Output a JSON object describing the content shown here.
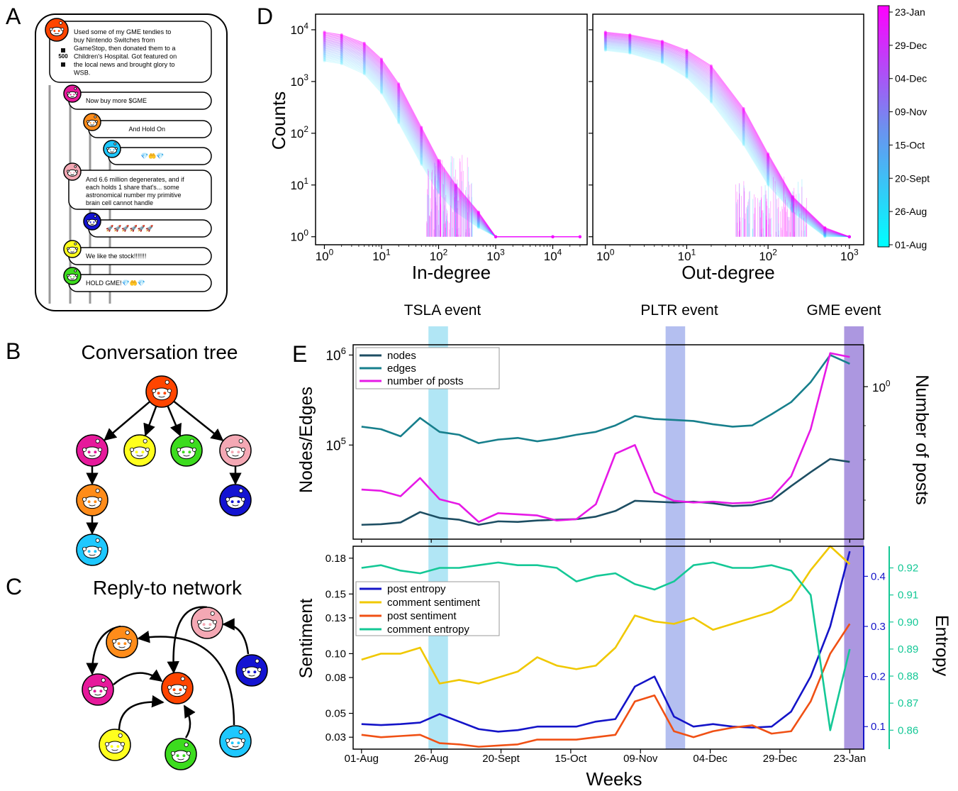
{
  "panel_letters": {
    "a": "A",
    "b": "B",
    "c": "C",
    "d": "D",
    "e": "E"
  },
  "thread": {
    "vote_count": "500",
    "top_post": [
      "Used some of my GME tendies to",
      "buy Nintendo Switches from",
      "GameStop, then donated them to a",
      "Children's Hospital. Got featured on",
      "the local news and brought glory to",
      "WSB."
    ],
    "replies": [
      {
        "lines": [
          "Now buy more $GME"
        ],
        "color": "#e6199b"
      },
      {
        "lines": [
          "And Hold On"
        ],
        "color": "#ff8c1a"
      },
      {
        "lines": [
          "💎🤲💎"
        ],
        "color": "#1ec8ff"
      },
      {
        "lines": [
          "And 6.6 million degenerates, and if",
          "each holds 1 share that's... some",
          "astronomical number my primitive",
          "brain cell cannot handle"
        ],
        "color": "#f4a8b4"
      },
      {
        "lines": [
          "🚀🚀🚀🚀🚀🚀"
        ],
        "color": "#1414d2"
      },
      {
        "lines": [
          "We like the stock!!!!!!!"
        ],
        "color": "#ffff1e"
      },
      {
        "lines": [
          "HOLD GME!💎🤲💎"
        ],
        "color": "#3cdc1e"
      }
    ],
    "top_color": "#ff4500"
  },
  "tree": {
    "title": "Conversation tree",
    "node_colors": {
      "root": "#ff4500",
      "pink": "#e6199b",
      "yellow": "#ffff1e",
      "green": "#3cdc1e",
      "lightpink": "#f4a8b4",
      "orange": "#ff8c1a",
      "blue": "#1414d2",
      "cyan": "#1ec8ff"
    }
  },
  "network": {
    "title": "Reply-to network"
  },
  "colorbar": {
    "labels": [
      "23-Jan",
      "29-Dec",
      "04-Dec",
      "09-Nov",
      "15-Oct",
      "20-Sept",
      "26-Aug",
      "01-Aug"
    ],
    "top_color": "#ff00ff",
    "bottom_color": "#00ffff"
  },
  "chart_data": [
    {
      "type": "scatter",
      "panel": "D-left",
      "xlabel": "In-degree",
      "ylabel": "Counts",
      "xscale": "log",
      "yscale": "log",
      "xticks": [
        "10^0",
        "10^1",
        "10^2",
        "10^3",
        "10^4"
      ],
      "yticks": [
        "10^0",
        "10^1",
        "10^2",
        "10^3",
        "10^4"
      ],
      "xlim": [
        0.7,
        40000
      ],
      "ylim": [
        0.7,
        20000
      ],
      "series": [
        {
          "date": "01-Aug",
          "x": [
            1,
            2,
            5,
            10,
            20,
            50,
            100,
            200,
            500,
            1000,
            10000
          ],
          "y": [
            2500,
            2200,
            1400,
            600,
            160,
            25,
            7,
            3,
            1.5,
            1,
            1
          ]
        },
        {
          "date": "23-Jan",
          "x": [
            1,
            2,
            5,
            10,
            20,
            50,
            100,
            200,
            500,
            1000,
            10000,
            30000
          ],
          "y": [
            9000,
            8000,
            5500,
            2700,
            900,
            130,
            30,
            10,
            3,
            1,
            1,
            1
          ]
        }
      ]
    },
    {
      "type": "scatter",
      "panel": "D-right",
      "xlabel": "Out-degree",
      "xscale": "log",
      "yscale": "log",
      "xticks": [
        "10^0",
        "10^1",
        "10^2",
        "10^3"
      ],
      "xlim": [
        0.7,
        1500
      ],
      "ylim": [
        0.7,
        20000
      ],
      "series": [
        {
          "date": "01-Aug",
          "x": [
            1,
            2,
            5,
            10,
            20,
            50,
            100,
            200,
            500,
            1000
          ],
          "y": [
            4000,
            3500,
            2300,
            1200,
            400,
            60,
            10,
            3,
            1,
            1
          ]
        },
        {
          "date": "23-Jan",
          "x": [
            1,
            2,
            5,
            10,
            20,
            50,
            100,
            200,
            500,
            1000
          ],
          "y": [
            9000,
            8000,
            6000,
            4000,
            2000,
            300,
            40,
            6,
            1.5,
            1
          ]
        }
      ]
    },
    {
      "type": "line",
      "panel": "E-top",
      "ylabel": "Nodes/Edges",
      "y2label": "Number of posts",
      "yscale": "log",
      "yticks": [
        "10^5",
        "10^6"
      ],
      "y2ticks": [
        "10^0"
      ],
      "x_ticks": [
        "01-Aug",
        "26-Aug",
        "20-Sept",
        "15-Oct",
        "09-Nov",
        "04-Dec",
        "29-Dec",
        "23-Jan"
      ],
      "events": [
        {
          "label": "TSLA event",
          "start": "24-Aug",
          "end": "31-Aug",
          "color": "#87d8f0"
        },
        {
          "label": "PLTR event",
          "start": "19-Nov",
          "end": "26-Nov",
          "color": "#8c9ce8"
        },
        {
          "label": "GME event",
          "start": "21-Jan",
          "end": "28-Jan",
          "color": "#8060d0"
        }
      ],
      "legend": [
        "nodes",
        "edges",
        "number of posts"
      ],
      "series": [
        {
          "name": "nodes",
          "color": "#1d4e63",
          "x": [
            0,
            7,
            14,
            21,
            28,
            35,
            42,
            49,
            56,
            63,
            70,
            77,
            84,
            91,
            98,
            105,
            112,
            119,
            126,
            133,
            140,
            147,
            154,
            161,
            168,
            175
          ],
          "y": [
            13000,
            13200,
            13800,
            18000,
            15500,
            14800,
            13000,
            14200,
            14000,
            14500,
            14800,
            15000,
            16000,
            18500,
            24000,
            23500,
            23000,
            23500,
            22500,
            21000,
            21500,
            24000,
            35000,
            50000,
            70000,
            65000
          ]
        },
        {
          "name": "edges",
          "color": "#177f8c",
          "x": [
            0,
            7,
            14,
            21,
            28,
            35,
            42,
            49,
            56,
            63,
            70,
            77,
            84,
            91,
            98,
            105,
            112,
            119,
            126,
            133,
            140,
            147,
            154,
            161,
            168,
            175
          ],
          "y": [
            160000,
            150000,
            125000,
            200000,
            140000,
            130000,
            105000,
            115000,
            120000,
            110000,
            118000,
            130000,
            140000,
            165000,
            210000,
            195000,
            190000,
            185000,
            170000,
            160000,
            165000,
            220000,
            300000,
            500000,
            1000000,
            800000
          ]
        },
        {
          "name": "number of posts",
          "color": "#e619e6",
          "x": [
            0,
            7,
            14,
            21,
            28,
            35,
            42,
            49,
            56,
            63,
            70,
            77,
            84,
            91,
            98,
            105,
            112,
            119,
            126,
            133,
            140,
            147,
            154,
            161,
            168,
            175
          ],
          "y": [
            32000,
            31000,
            27000,
            43000,
            25000,
            22000,
            14000,
            17500,
            17000,
            16500,
            14500,
            15000,
            22000,
            80000,
            100000,
            30000,
            24000,
            23000,
            23500,
            22500,
            23000,
            26000,
            45000,
            150000,
            1050000,
            950000
          ]
        }
      ]
    },
    {
      "type": "line",
      "panel": "E-bottom",
      "ylabel": "Sentiment",
      "y2label": "Entropy",
      "xlabel": "Weeks",
      "yticks": [
        "0.03",
        "0.05",
        "0.08",
        "0.10",
        "0.13",
        "0.15",
        "0.18"
      ],
      "y2ticks": [
        "0.1",
        "0.2",
        "0.3",
        "0.4"
      ],
      "y3ticks": [
        "0.86",
        "0.87",
        "0.88",
        "0.89",
        "0.90",
        "0.91",
        "0.92"
      ],
      "ylim": [
        0.02,
        0.2
      ],
      "x_ticks": [
        "01-Aug",
        "26-Aug",
        "20-Sept",
        "15-Oct",
        "09-Nov",
        "04-Dec",
        "29-Dec",
        "23-Jan"
      ],
      "legend": [
        "post entropy",
        "comment sentiment",
        "post sentiment",
        "comment entropy"
      ],
      "series": [
        {
          "name": "post entropy",
          "color": "#1414c8",
          "axis": "entropy",
          "x": [
            0,
            7,
            14,
            21,
            28,
            35,
            42,
            49,
            56,
            63,
            70,
            77,
            84,
            91,
            98,
            105,
            112,
            119,
            126,
            133,
            140,
            147,
            154,
            161,
            168,
            175
          ],
          "y": [
            0.105,
            0.103,
            0.105,
            0.108,
            0.125,
            0.11,
            0.095,
            0.09,
            0.093,
            0.1,
            0.1,
            0.1,
            0.11,
            0.115,
            0.18,
            0.2,
            0.12,
            0.1,
            0.105,
            0.1,
            0.098,
            0.1,
            0.13,
            0.2,
            0.3,
            0.45
          ]
        },
        {
          "name": "comment sentiment",
          "color": "#f0c800",
          "axis": "sentiment",
          "x": [
            0,
            7,
            14,
            21,
            28,
            35,
            42,
            49,
            56,
            63,
            70,
            77,
            84,
            91,
            98,
            105,
            112,
            119,
            126,
            133,
            140,
            147,
            154,
            161,
            168,
            175
          ],
          "y": [
            0.095,
            0.1,
            0.1,
            0.105,
            0.075,
            0.078,
            0.075,
            0.08,
            0.085,
            0.097,
            0.09,
            0.087,
            0.09,
            0.105,
            0.132,
            0.127,
            0.125,
            0.13,
            0.12,
            0.125,
            0.13,
            0.135,
            0.145,
            0.17,
            0.19,
            0.175
          ]
        },
        {
          "name": "post sentiment",
          "color": "#f05014",
          "axis": "sentiment",
          "x": [
            0,
            7,
            14,
            21,
            28,
            35,
            42,
            49,
            56,
            63,
            70,
            77,
            84,
            91,
            98,
            105,
            112,
            119,
            126,
            133,
            140,
            147,
            154,
            161,
            168,
            175
          ],
          "y": [
            0.032,
            0.03,
            0.031,
            0.032,
            0.025,
            0.024,
            0.022,
            0.023,
            0.024,
            0.028,
            0.028,
            0.028,
            0.03,
            0.032,
            0.06,
            0.065,
            0.035,
            0.03,
            0.035,
            0.038,
            0.04,
            0.033,
            0.035,
            0.06,
            0.1,
            0.125
          ]
        },
        {
          "name": "comment entropy",
          "color": "#14c896",
          "axis": "entropy2",
          "x": [
            0,
            7,
            14,
            21,
            28,
            35,
            42,
            49,
            56,
            63,
            70,
            77,
            84,
            91,
            98,
            105,
            112,
            119,
            126,
            133,
            140,
            147,
            154,
            161,
            168,
            175
          ],
          "y": [
            0.92,
            0.921,
            0.919,
            0.918,
            0.92,
            0.92,
            0.921,
            0.922,
            0.921,
            0.921,
            0.92,
            0.915,
            0.917,
            0.918,
            0.914,
            0.912,
            0.915,
            0.921,
            0.922,
            0.92,
            0.92,
            0.921,
            0.919,
            0.91,
            0.86,
            0.89
          ]
        }
      ]
    }
  ],
  "event_labels": [
    "TSLA event",
    "PLTR event",
    "GME event"
  ]
}
